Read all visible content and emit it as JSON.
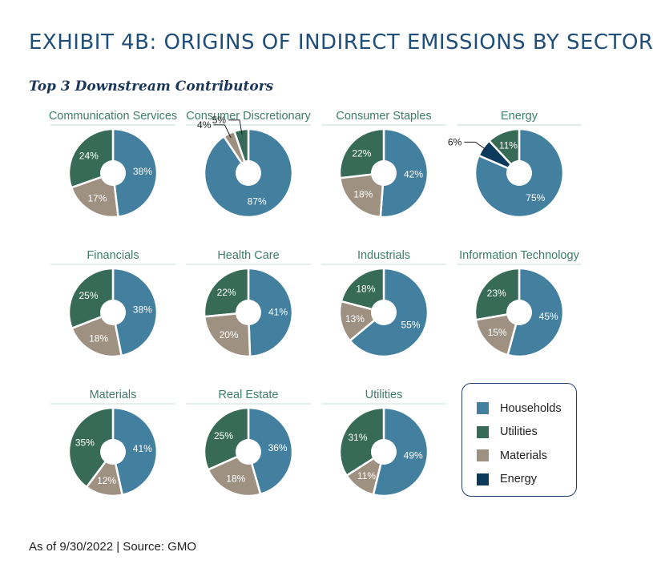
{
  "header": {
    "title": "EXHIBIT 4B: ORIGINS OF INDIRECT EMISSIONS BY SECTOR",
    "subtitle": "Top 3 Downstream Contributors"
  },
  "colors": {
    "Households": "#43809f",
    "Utilities": "#376b58",
    "Materials": "#9e9181",
    "Energy": "#0c3a5c"
  },
  "legend": [
    "Households",
    "Utilities",
    "Materials",
    "Energy"
  ],
  "footer": "As of 9/30/2022 | Source: GMO",
  "chart_data": [
    {
      "type": "pie",
      "title": "Communication Services",
      "series": [
        {
          "name": "Households",
          "value": 38,
          "label": "38%"
        },
        {
          "name": "Utilities",
          "value": 24,
          "label": "24%"
        },
        {
          "name": "Materials",
          "value": 17,
          "label": "17%"
        }
      ]
    },
    {
      "type": "pie",
      "title": "Consumer Discretionary",
      "series": [
        {
          "name": "Households",
          "value": 87,
          "label": "87%"
        },
        {
          "name": "Utilities",
          "value": 5,
          "label": "5%"
        },
        {
          "name": "Materials",
          "value": 4,
          "label": "4%"
        }
      ]
    },
    {
      "type": "pie",
      "title": "Consumer Staples",
      "series": [
        {
          "name": "Households",
          "value": 42,
          "label": "42%"
        },
        {
          "name": "Utilities",
          "value": 22,
          "label": "22%"
        },
        {
          "name": "Materials",
          "value": 18,
          "label": "18%"
        }
      ]
    },
    {
      "type": "pie",
      "title": "Energy",
      "series": [
        {
          "name": "Households",
          "value": 75,
          "label": "75%"
        },
        {
          "name": "Utilities",
          "value": 11,
          "label": "11%"
        },
        {
          "name": "Energy",
          "value": 6,
          "label": "6%"
        }
      ]
    },
    {
      "type": "pie",
      "title": "Financials",
      "series": [
        {
          "name": "Households",
          "value": 38,
          "label": "38%"
        },
        {
          "name": "Utilities",
          "value": 25,
          "label": "25%"
        },
        {
          "name": "Materials",
          "value": 18,
          "label": "18%"
        }
      ]
    },
    {
      "type": "pie",
      "title": "Health Care",
      "series": [
        {
          "name": "Households",
          "value": 41,
          "label": "41%"
        },
        {
          "name": "Utilities",
          "value": 22,
          "label": "22%"
        },
        {
          "name": "Materials",
          "value": 20,
          "label": "20%"
        }
      ]
    },
    {
      "type": "pie",
      "title": "Industrials",
      "series": [
        {
          "name": "Households",
          "value": 55,
          "label": "55%"
        },
        {
          "name": "Utilities",
          "value": 18,
          "label": "18%"
        },
        {
          "name": "Materials",
          "value": 13,
          "label": "13%"
        }
      ]
    },
    {
      "type": "pie",
      "title": "Information Technology",
      "series": [
        {
          "name": "Households",
          "value": 45,
          "label": "45%"
        },
        {
          "name": "Utilities",
          "value": 23,
          "label": "23%"
        },
        {
          "name": "Materials",
          "value": 15,
          "label": "15%"
        }
      ]
    },
    {
      "type": "pie",
      "title": "Materials",
      "series": [
        {
          "name": "Households",
          "value": 41,
          "label": "41%"
        },
        {
          "name": "Utilities",
          "value": 35,
          "label": "35%"
        },
        {
          "name": "Materials",
          "value": 12,
          "label": "12%"
        }
      ]
    },
    {
      "type": "pie",
      "title": "Real Estate",
      "series": [
        {
          "name": "Households",
          "value": 36,
          "label": "36%"
        },
        {
          "name": "Utilities",
          "value": 25,
          "label": "25%"
        },
        {
          "name": "Materials",
          "value": 18,
          "label": "18%"
        }
      ]
    },
    {
      "type": "pie",
      "title": "Utilities",
      "series": [
        {
          "name": "Households",
          "value": 49,
          "label": "49%"
        },
        {
          "name": "Utilities",
          "value": 31,
          "label": "31%"
        },
        {
          "name": "Materials",
          "value": 11,
          "label": "11%"
        }
      ]
    }
  ]
}
